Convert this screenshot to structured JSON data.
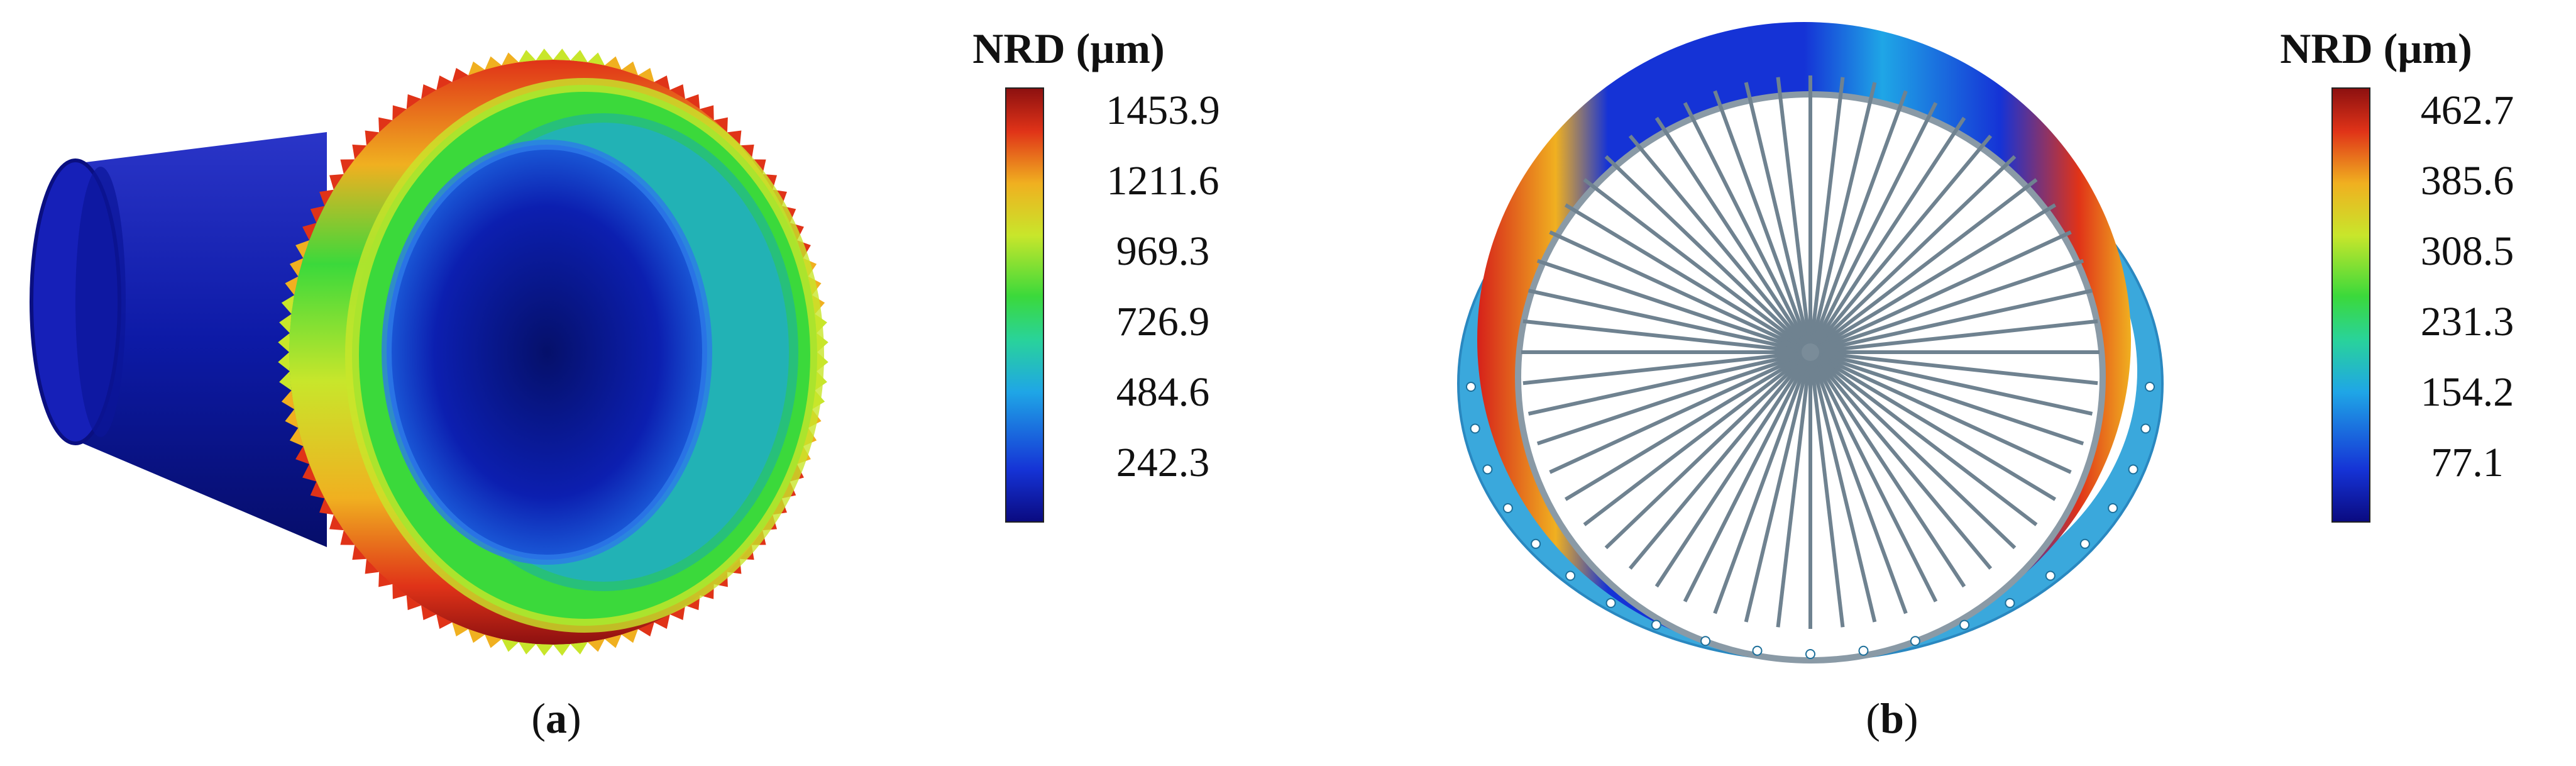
{
  "panels": [
    {
      "id": "a",
      "caption_open": "(",
      "caption_letter": "a",
      "caption_close": ")",
      "colorbar": {
        "title": "NRD (µm)",
        "ticks": [
          "1453.9",
          "1211.6",
          "969.3",
          "726.9",
          "484.6",
          "242.3"
        ]
      }
    },
    {
      "id": "b",
      "caption_open": "(",
      "caption_letter": "b",
      "caption_close": ")",
      "colorbar": {
        "title": "NRD (µm)",
        "ticks": [
          "462.7",
          "385.6",
          "308.5",
          "231.3",
          "154.2",
          "77.1"
        ]
      }
    }
  ],
  "colors": {
    "colormap": [
      "#0a0a80",
      "#1533d6",
      "#1fa6e6",
      "#29d39a",
      "#3bd93b",
      "#c8e62b",
      "#f0b020",
      "#e03318",
      "#8c1010"
    ],
    "shaft": "#0d1aa6",
    "flange": "#3aa8dc"
  }
}
